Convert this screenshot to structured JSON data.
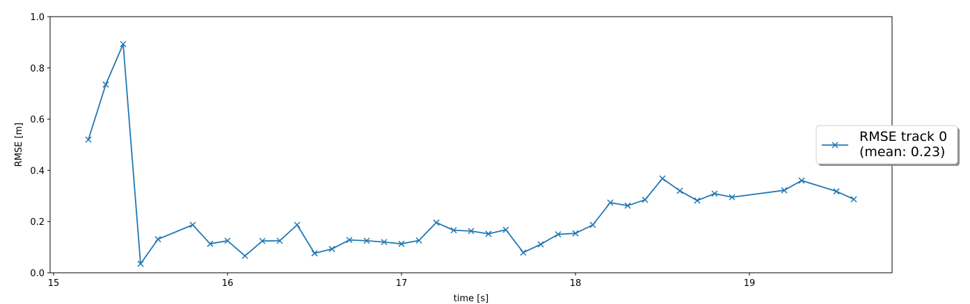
{
  "chart_data": {
    "type": "line",
    "xlabel": "time [s]",
    "ylabel": "RMSE [m]",
    "xlim": [
      14.98,
      19.82
    ],
    "ylim": [
      0.0,
      1.0
    ],
    "xticks": [
      15,
      16,
      17,
      18,
      19
    ],
    "yticks": [
      0.0,
      0.2,
      0.4,
      0.6,
      0.8,
      1.0
    ],
    "xtick_labels": [
      "15",
      "16",
      "17",
      "18",
      "19"
    ],
    "ytick_labels": [
      "0.0",
      "0.2",
      "0.4",
      "0.6",
      "0.8",
      "1.0"
    ],
    "grid": false,
    "legend_position": "right, outside plot",
    "series": [
      {
        "legend_line1": "RMSE track 0",
        "legend_line2": "(mean: 0.23)",
        "color": "#1f77b4",
        "marker": "x",
        "x": [
          15.2,
          15.3,
          15.4,
          15.5,
          15.6,
          15.8,
          15.9,
          16.0,
          16.1,
          16.2,
          16.3,
          16.4,
          16.5,
          16.6,
          16.7,
          16.8,
          16.9,
          17.0,
          17.1,
          17.2,
          17.3,
          17.4,
          17.5,
          17.6,
          17.7,
          17.8,
          17.9,
          18.0,
          18.1,
          18.2,
          18.3,
          18.4,
          18.5,
          18.6,
          18.7,
          18.8,
          18.9,
          19.2,
          19.3,
          19.5,
          19.6
        ],
        "y": [
          0.52,
          0.735,
          0.893,
          0.035,
          0.131,
          0.187,
          0.113,
          0.125,
          0.066,
          0.124,
          0.125,
          0.187,
          0.076,
          0.093,
          0.128,
          0.125,
          0.12,
          0.113,
          0.126,
          0.196,
          0.166,
          0.163,
          0.152,
          0.168,
          0.079,
          0.111,
          0.15,
          0.154,
          0.187,
          0.274,
          0.262,
          0.285,
          0.368,
          0.32,
          0.282,
          0.309,
          0.295,
          0.322,
          0.36,
          0.318,
          0.287
        ]
      }
    ]
  }
}
